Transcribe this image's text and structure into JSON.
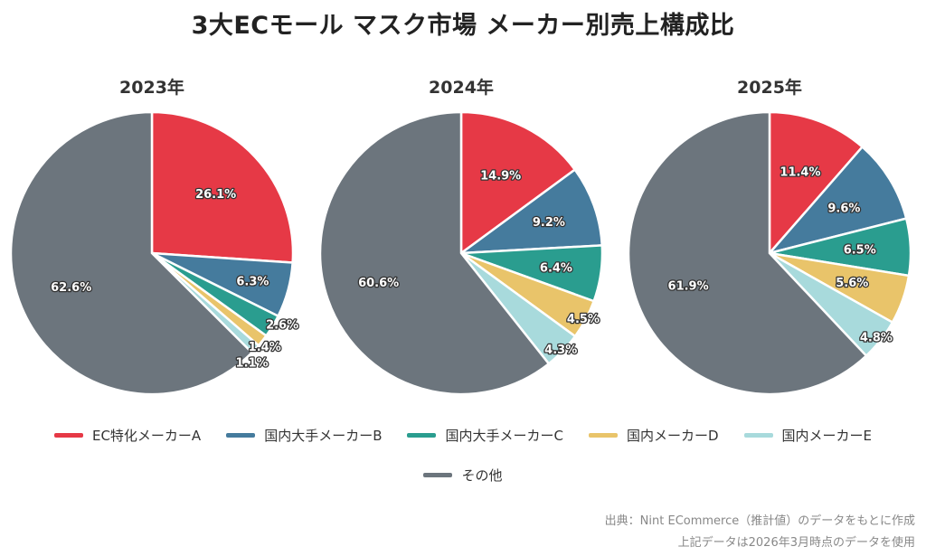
{
  "title": "3大ECモール マスク市場 メーカー別売上構成比",
  "chart_data": [
    {
      "type": "pie",
      "title": "2023年",
      "categories": [
        "EC特化メーカーA",
        "国内大手メーカーB",
        "国内大手メーカーC",
        "国内メーカーD",
        "国内メーカーE",
        "その他"
      ],
      "values": [
        26.1,
        6.3,
        2.6,
        1.4,
        1.1,
        62.6
      ],
      "labels": [
        "26.1%",
        "6.3%",
        "2.6%",
        "1.4%",
        "1.1%",
        "62.6%"
      ]
    },
    {
      "type": "pie",
      "title": "2024年",
      "categories": [
        "EC特化メーカーA",
        "国内大手メーカーB",
        "国内大手メーカーC",
        "国内メーカーD",
        "国内メーカーE",
        "その他"
      ],
      "values": [
        14.9,
        9.2,
        6.4,
        4.5,
        4.3,
        60.6
      ],
      "labels": [
        "14.9%",
        "9.2%",
        "6.4%",
        "4.5%",
        "4.3%",
        "60.6%"
      ]
    },
    {
      "type": "pie",
      "title": "2025年",
      "categories": [
        "EC特化メーカーA",
        "国内大手メーカーB",
        "国内大手メーカーC",
        "国内メーカーD",
        "国内メーカーE",
        "その他"
      ],
      "values": [
        11.4,
        9.6,
        6.5,
        5.6,
        4.8,
        61.9
      ],
      "labels": [
        "11.4%",
        "9.6%",
        "6.5%",
        "5.6%",
        "4.8%",
        "61.9%"
      ]
    }
  ],
  "legend": [
    {
      "label": "EC特化メーカーA",
      "color": "#e63946"
    },
    {
      "label": "国内大手メーカーB",
      "color": "#457b9d"
    },
    {
      "label": "国内大手メーカーC",
      "color": "#2a9d8f"
    },
    {
      "label": "国内メーカーD",
      "color": "#e9c46a"
    },
    {
      "label": "国内メーカーE",
      "color": "#a8dadc"
    },
    {
      "label": "その他",
      "color": "#6c757d"
    }
  ],
  "source": {
    "line1": "出典：Nint ECommerce（推計値）のデータをもとに作成",
    "line2": "上記データは2026年3月時点のデータを使用"
  }
}
